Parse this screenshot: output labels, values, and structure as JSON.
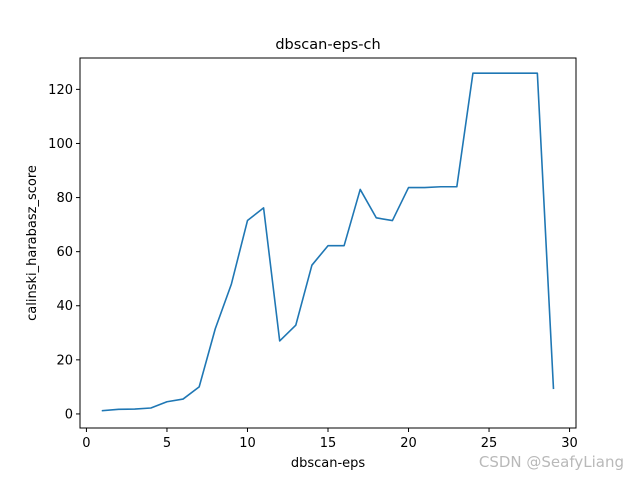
{
  "chart_data": {
    "type": "line",
    "title": "dbscan-eps-ch",
    "xlabel": "dbscan-eps",
    "ylabel": "calinski_harabasz_score",
    "xlim": [
      -0.4,
      30.4
    ],
    "ylim": [
      -5.2,
      131.6
    ],
    "xticks": [
      0,
      5,
      10,
      15,
      20,
      25,
      30
    ],
    "yticks": [
      0,
      20,
      40,
      60,
      80,
      100,
      120
    ],
    "x": [
      1,
      2,
      3,
      4,
      5,
      6,
      7,
      8,
      9,
      10,
      11,
      12,
      13,
      14,
      15,
      16,
      17,
      18,
      19,
      20,
      21,
      22,
      23,
      24,
      25,
      26,
      27,
      28,
      29
    ],
    "series": [
      {
        "values": [
          1.2,
          1.7,
          1.8,
          2.2,
          4.5,
          5.5,
          10,
          31.5,
          48,
          71.5,
          76.2,
          27,
          32.8,
          55,
          62.2,
          62.2,
          83,
          72.5,
          71.5,
          83.7,
          83.7,
          84,
          84,
          126,
          126,
          126,
          126,
          126,
          9.5
        ],
        "color": "#1f77b4"
      }
    ],
    "grid": false,
    "legend": "none"
  },
  "watermark": "CSDN @SeafyLiang"
}
